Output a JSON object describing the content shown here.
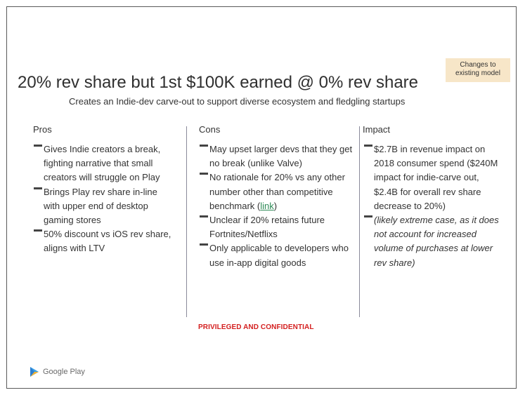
{
  "tag": {
    "line1": "Changes to",
    "line2": "existing model"
  },
  "title": "20% rev share but 1st $100K earned @ 0% rev share",
  "subtitle": "Creates an Indie-dev carve-out to support diverse ecosystem and fledgling startups",
  "columns": {
    "pros": {
      "heading": "Pros",
      "items": [
        "Gives Indie creators a break, fighting narrative that small creators will struggle on Play",
        "Brings Play rev share in-line with upper end of desktop gaming stores",
        "50% discount vs iOS rev share, aligns with LTV"
      ]
    },
    "cons": {
      "heading": "Cons",
      "items": [
        "May upset larger devs that they get no break (unlike Valve)",
        "No rationale for 20% vs any other number other than competitive benchmark (",
        "Unclear if 20% retains future Fortnites/Netflixs",
        "Only applicable to developers who use in-app digital goods"
      ],
      "link_text": "link",
      "link_suffix": ")"
    },
    "impact": {
      "heading": "Impact",
      "items": [
        "$2.7B in revenue impact on 2018 consumer spend ($240M impact for indie-carve out, $2.4B for overall rev share decrease to 20%)",
        "(likely extreme case, as it does not account for increased volume of purchases at lower rev share)"
      ]
    }
  },
  "confidential": "PRIVILEGED AND CONFIDENTIAL",
  "logo": {
    "text": "Google Play",
    "icon": "google-play-icon"
  },
  "colors": {
    "confidential": "#d42020",
    "tag_bg": "#f7e6c8",
    "link": "#2e8b57"
  }
}
